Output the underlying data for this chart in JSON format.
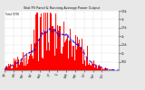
{
  "title": "Total PV Panel & Running Average Power Output",
  "legend_pv": "Total: 9700",
  "legend_avg": "---",
  "bg_color": "#e8e8e8",
  "plot_bg": "#ffffff",
  "bar_color": "#ff0000",
  "avg_line_color": "#0000dd",
  "grid_color": "#aaaaaa",
  "ylim": [
    0,
    3500
  ],
  "ytick_values": [
    500,
    1000,
    1500,
    2000,
    2500,
    3000,
    3500
  ],
  "ytick_labels": [
    "500",
    "1k",
    "1.5k",
    "2k",
    "2.5k",
    "3k",
    "3.5k"
  ],
  "n_bars": 365,
  "seed": 42
}
